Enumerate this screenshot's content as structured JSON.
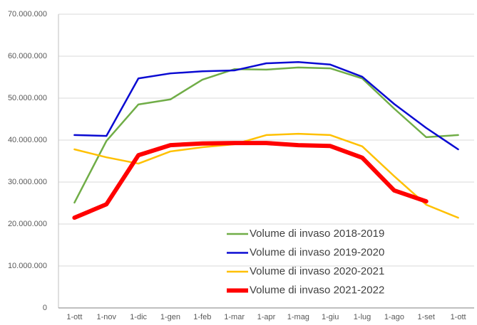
{
  "chart_data": {
    "type": "line",
    "categories": [
      "1-ott",
      "1-nov",
      "1-dic",
      "1-gen",
      "1-feb",
      "1-mar",
      "1-apr",
      "1-mag",
      "1-giu",
      "1-lug",
      "1-ago",
      "1-set",
      "1-ott"
    ],
    "series": [
      {
        "name": "Volume di invaso 2018-2019",
        "color": "#70ad47",
        "width": 2.5,
        "values": [
          25100000,
          39800000,
          48500000,
          49700000,
          54400000,
          56900000,
          56800000,
          57300000,
          57100000,
          54700000,
          47500000,
          40700000,
          41200000
        ]
      },
      {
        "name": "Volume di invaso 2019-2020",
        "color": "#0a0ad2",
        "width": 2.5,
        "values": [
          41200000,
          41000000,
          54700000,
          55900000,
          56400000,
          56600000,
          58300000,
          58600000,
          58000000,
          55100000,
          48600000,
          42900000,
          37800000
        ]
      },
      {
        "name": "Volume di invaso 2020-2021",
        "color": "#ffc000",
        "width": 2.5,
        "values": [
          37800000,
          35900000,
          34400000,
          37300000,
          38300000,
          39000000,
          41200000,
          41500000,
          41200000,
          38500000,
          31400000,
          24600000,
          21500000
        ]
      },
      {
        "name": "Volume di invaso 2021-2022",
        "color": "#ff0000",
        "width": 6,
        "values": [
          21500000,
          24700000,
          36400000,
          38800000,
          39200000,
          39300000,
          39300000,
          38800000,
          38600000,
          35800000,
          28000000,
          25400000,
          null
        ]
      }
    ],
    "ylim": [
      0,
      70000000
    ],
    "yticks": [
      {
        "value": 0,
        "label": "0"
      },
      {
        "value": 10000000,
        "label": "10.000.000"
      },
      {
        "value": 20000000,
        "label": "20.000.000"
      },
      {
        "value": 30000000,
        "label": "30.000.000"
      },
      {
        "value": 40000000,
        "label": "40.000.000"
      },
      {
        "value": 50000000,
        "label": "50.000.000"
      },
      {
        "value": 60000000,
        "label": "60.000.000"
      },
      {
        "value": 70000000,
        "label": "70.000.000"
      }
    ],
    "grid": true,
    "legend": "lower right"
  }
}
